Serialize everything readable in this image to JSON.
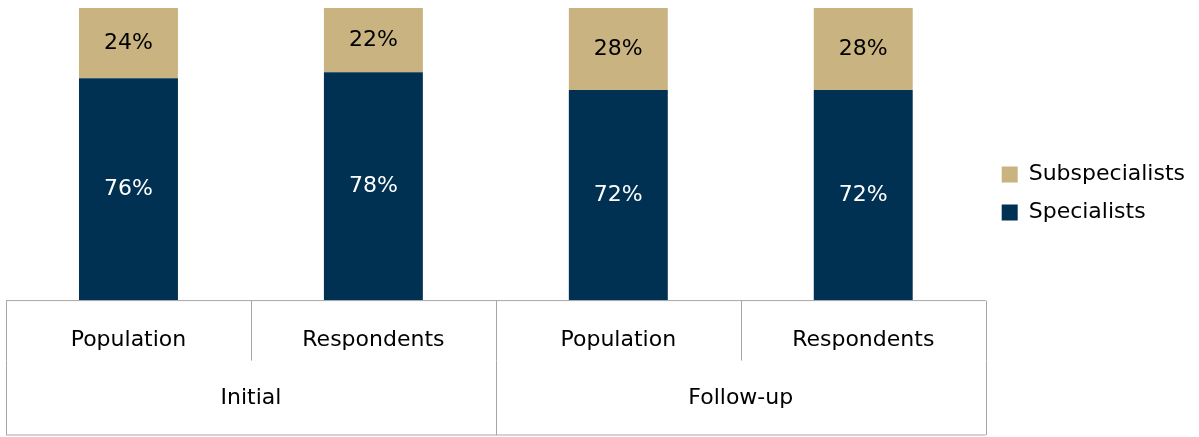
{
  "chart_data": {
    "type": "bar",
    "stacked": true,
    "categories": [
      "Population",
      "Respondents",
      "Population",
      "Respondents"
    ],
    "series": [
      {
        "name": "Specialists",
        "color": "#003152",
        "values": [
          76,
          78,
          72,
          72
        ],
        "value_labels": [
          "76%",
          "78%",
          "72%",
          "72%"
        ]
      },
      {
        "name": "Subspecialists",
        "color": "#c8b381",
        "values": [
          24,
          22,
          28,
          28
        ],
        "value_labels": [
          "24%",
          "22%",
          "28%",
          "28%"
        ]
      }
    ],
    "annotations": [
      "Initial",
      "Follow-up"
    ],
    "legend": "right",
    "grid": false
  }
}
